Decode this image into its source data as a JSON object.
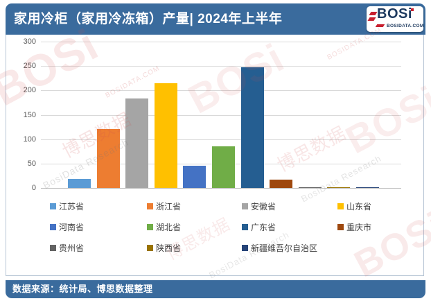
{
  "header": {
    "title": "家用冷柜（家用冷冻箱）产量| 2024年上半年"
  },
  "logo": {
    "name": "BOSi",
    "site": "BOSIDATA.COM"
  },
  "footer": {
    "source": "数据来源：统计局、博思数据整理"
  },
  "watermarks": [
    "BOSi",
    "博思数据",
    "BosiData Research",
    "BOSIDATA.COM"
  ],
  "colors": {
    "accent_blue": "#3A6B9D",
    "logo_red": "#C8202F",
    "logo_navy": "#1E3A5F",
    "gridline": "#D9D9D9",
    "axis_text": "#595959"
  },
  "chart_data": {
    "type": "bar",
    "title": "家用冷柜（家用冷冻箱）产量 2024年上半年",
    "categories": [
      "江苏省",
      "浙江省",
      "安徽省",
      "山东省",
      "河南省",
      "湖北省",
      "广东省",
      "重庆市",
      "贵州省",
      "陕西省",
      "新疆维吾尔自治区"
    ],
    "values": [
      18,
      121,
      184,
      215,
      45,
      86,
      248,
      17,
      2,
      2,
      2
    ],
    "colors": [
      "#5B9BD5",
      "#ED7D31",
      "#A5A5A5",
      "#FFC000",
      "#4472C4",
      "#70AD47",
      "#255E91",
      "#9E480E",
      "#636363",
      "#997300",
      "#264478"
    ],
    "xlabel": "",
    "ylabel": "",
    "ylim": [
      0,
      300
    ],
    "yticks": [
      0,
      50,
      100,
      150,
      200,
      250,
      300
    ],
    "grid": true,
    "legend_position": "bottom"
  }
}
